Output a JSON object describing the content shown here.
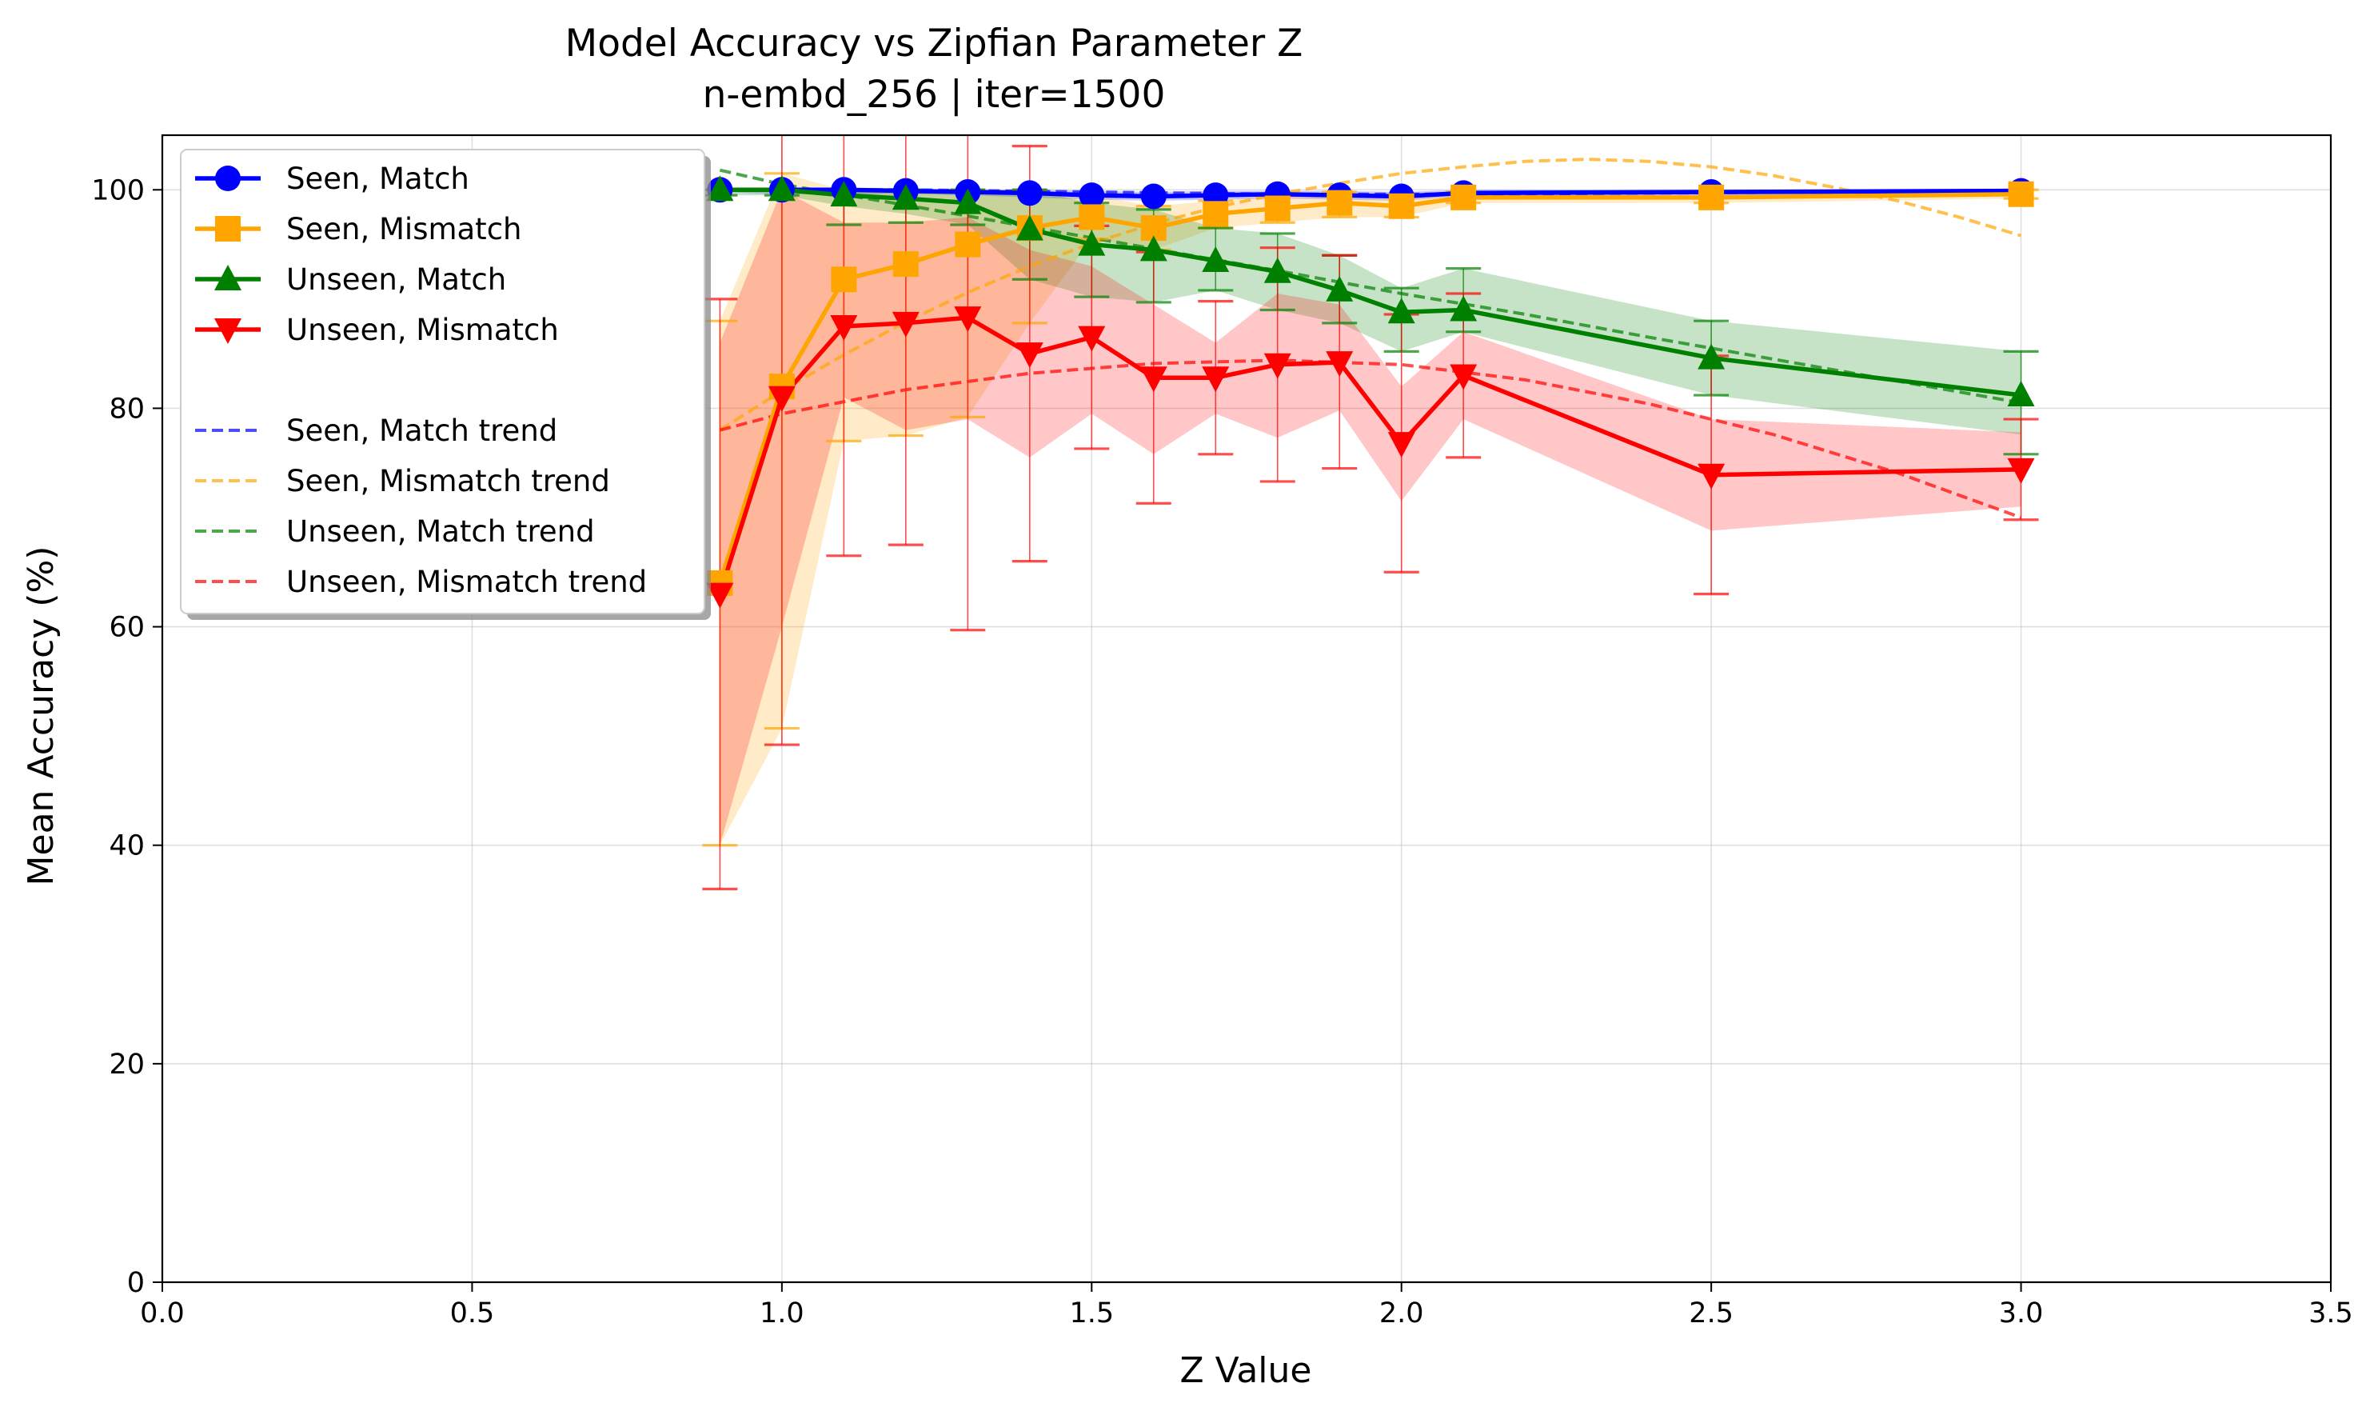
{
  "chart_data": {
    "type": "line",
    "title": "Model Accuracy vs Zipfian Parameter Z",
    "subtitle": "n-embd_256 | iter=1500",
    "xlabel": "Z Value",
    "ylabel": "Mean Accuracy (%)",
    "xlim": [
      0,
      3.5
    ],
    "ylim": [
      0,
      105
    ],
    "xticks": [
      "0.0",
      "0.5",
      "1.0",
      "1.5",
      "2.0",
      "2.5",
      "3.0",
      "3.5"
    ],
    "yticks": [
      "0",
      "20",
      "40",
      "60",
      "80",
      "100"
    ],
    "grid": true,
    "legend_position": "top-left",
    "x": [
      0.9,
      1.0,
      1.1,
      1.2,
      1.3,
      1.4,
      1.5,
      1.6,
      1.7,
      1.8,
      1.9,
      2.0,
      2.1,
      2.5,
      3.0
    ],
    "series": [
      {
        "name": "Seen, Match",
        "color": "#0000ff",
        "marker": "circle",
        "values": [
          100,
          100,
          100,
          99.9,
          99.8,
          99.7,
          99.5,
          99.4,
          99.5,
          99.6,
          99.5,
          99.4,
          99.7,
          99.8,
          99.9
        ],
        "lower": [
          99.8,
          99.6,
          99.6,
          99.6,
          99.5,
          99.3,
          99.1,
          99.0,
          99.1,
          99.2,
          99.1,
          99.0,
          99.4,
          99.5,
          99.7
        ],
        "upper": [
          100,
          100,
          100,
          100,
          100,
          100,
          99.9,
          99.8,
          99.9,
          99.9,
          99.9,
          99.8,
          100,
          100,
          100
        ]
      },
      {
        "name": "Seen, Mismatch",
        "color": "#ffa500",
        "marker": "square",
        "values": [
          64,
          82,
          91.8,
          93.2,
          95,
          96.5,
          97.5,
          96.5,
          97.8,
          98.3,
          98.8,
          98.5,
          99.3,
          99.3,
          99.6
        ],
        "lower": [
          40,
          50.7,
          77,
          77.5,
          79.2,
          87.8,
          95.5,
          94.5,
          96.5,
          97,
          97.5,
          97.5,
          98.8,
          98.8,
          99.2
        ],
        "upper": [
          88,
          101.5,
          100,
          100,
          100,
          100,
          99.5,
          98.5,
          99,
          99.5,
          99.8,
          99.5,
          99.8,
          99.8,
          100
        ],
        "errbar_low": [
          40,
          50.7,
          77,
          77.5,
          79.2,
          87.8,
          95.5,
          94.5,
          96.5,
          97,
          97.5,
          97.5,
          98.8,
          98.8,
          99.2
        ],
        "errbar_high": [
          88,
          101.5,
          100,
          100,
          100,
          100,
          99.5,
          98.5,
          99,
          99.5,
          99.8,
          99.5,
          99.8,
          99.8,
          100
        ]
      },
      {
        "name": "Unseen, Match",
        "color": "#008000",
        "marker": "triangle-up",
        "values": [
          100,
          100,
          99.5,
          99.2,
          98.8,
          96.4,
          95,
          94.5,
          93.5,
          92.5,
          90.8,
          88.8,
          89,
          84.6,
          81.2
        ],
        "lower": [
          99.5,
          99.5,
          98.5,
          97.8,
          96.8,
          91.8,
          90.2,
          89.7,
          90.8,
          89,
          87.8,
          85.2,
          87,
          81.2,
          77.6
        ],
        "upper": [
          100,
          100,
          100,
          100,
          100,
          100,
          98.8,
          98.2,
          96.5,
          96,
          94,
          91,
          92.8,
          88,
          85.2
        ],
        "errbar_low": [
          99.5,
          99.5,
          96.8,
          97,
          96.8,
          91.8,
          90.2,
          89.7,
          90.8,
          89,
          87.8,
          85.2,
          87,
          81.2,
          75.8
        ],
        "errbar_high": [
          100,
          100,
          100,
          100,
          100,
          100,
          98.8,
          98.2,
          96.5,
          96,
          94,
          91,
          92.8,
          88,
          85.2
        ]
      },
      {
        "name": "Unseen, Mismatch",
        "color": "#ff0000",
        "marker": "triangle-down",
        "values": [
          63,
          81,
          87.5,
          87.8,
          88.3,
          85,
          86.5,
          82.8,
          82.8,
          84,
          84.2,
          76.8,
          83,
          73.9,
          74.4
        ],
        "lower": [
          40,
          60,
          81,
          78,
          79,
          75.5,
          79.5,
          75.8,
          79.5,
          77.3,
          79.8,
          71.5,
          79,
          68.8,
          71
        ],
        "upper": [
          86,
          100,
          97,
          97,
          97.5,
          94.5,
          93,
          89.5,
          86,
          90.5,
          89.5,
          82,
          87,
          79,
          77.8
        ],
        "errbar_low": [
          36,
          49.2,
          66.5,
          67.5,
          59.7,
          66,
          76.3,
          71.3,
          75.8,
          73.3,
          74.5,
          65,
          75.5,
          63,
          69.8
        ],
        "errbar_high": [
          90,
          113,
          108.5,
          108,
          117,
          104,
          96.7,
          94.3,
          89.8,
          94.7,
          94,
          88.6,
          90.5,
          84.8,
          79
        ]
      }
    ],
    "trends": [
      {
        "name": "Seen, Match trend",
        "color": "#0000ff",
        "x": [
          0.9,
          1.2,
          1.5,
          1.8,
          2.1,
          2.4,
          2.7,
          3.0
        ],
        "values": [
          100,
          100,
          99.8,
          99.6,
          99.6,
          99.7,
          99.8,
          99.9
        ]
      },
      {
        "name": "Seen, Mismatch trend",
        "color": "#ffa500",
        "x": [
          0.9,
          1.0,
          1.1,
          1.2,
          1.3,
          1.4,
          1.5,
          1.6,
          1.7,
          1.8,
          1.9,
          2.0,
          2.1,
          2.2,
          2.3,
          2.4,
          2.5,
          2.6,
          2.7,
          2.8,
          2.9,
          3.0
        ],
        "values": [
          78,
          81.6,
          84.9,
          87.9,
          90.6,
          93.0,
          95.1,
          96.9,
          98.4,
          99.6,
          100.6,
          101.5,
          102.1,
          102.6,
          102.8,
          102.6,
          102.1,
          101.3,
          100.2,
          99.0,
          97.5,
          95.8
        ]
      },
      {
        "name": "Unseen, Match trend",
        "color": "#008000",
        "x": [
          0.9,
          1.0,
          1.2,
          1.4,
          1.6,
          1.8,
          2.0,
          2.2,
          2.4,
          2.6,
          2.8,
          3.0
        ],
        "values": [
          101.8,
          100.5,
          98.6,
          96.6,
          94.6,
          92.6,
          90.5,
          88.6,
          86.5,
          84.5,
          82.5,
          80.5
        ]
      },
      {
        "name": "Unseen, Mismatch trend",
        "color": "#ff0000",
        "x": [
          0.9,
          1.0,
          1.2,
          1.4,
          1.6,
          1.8,
          2.0,
          2.2,
          2.4,
          2.6,
          2.8,
          3.0
        ],
        "values": [
          78,
          79.5,
          81.7,
          83.2,
          84.1,
          84.4,
          84.0,
          82.6,
          80.4,
          77.6,
          74.1,
          70
        ]
      }
    ]
  }
}
